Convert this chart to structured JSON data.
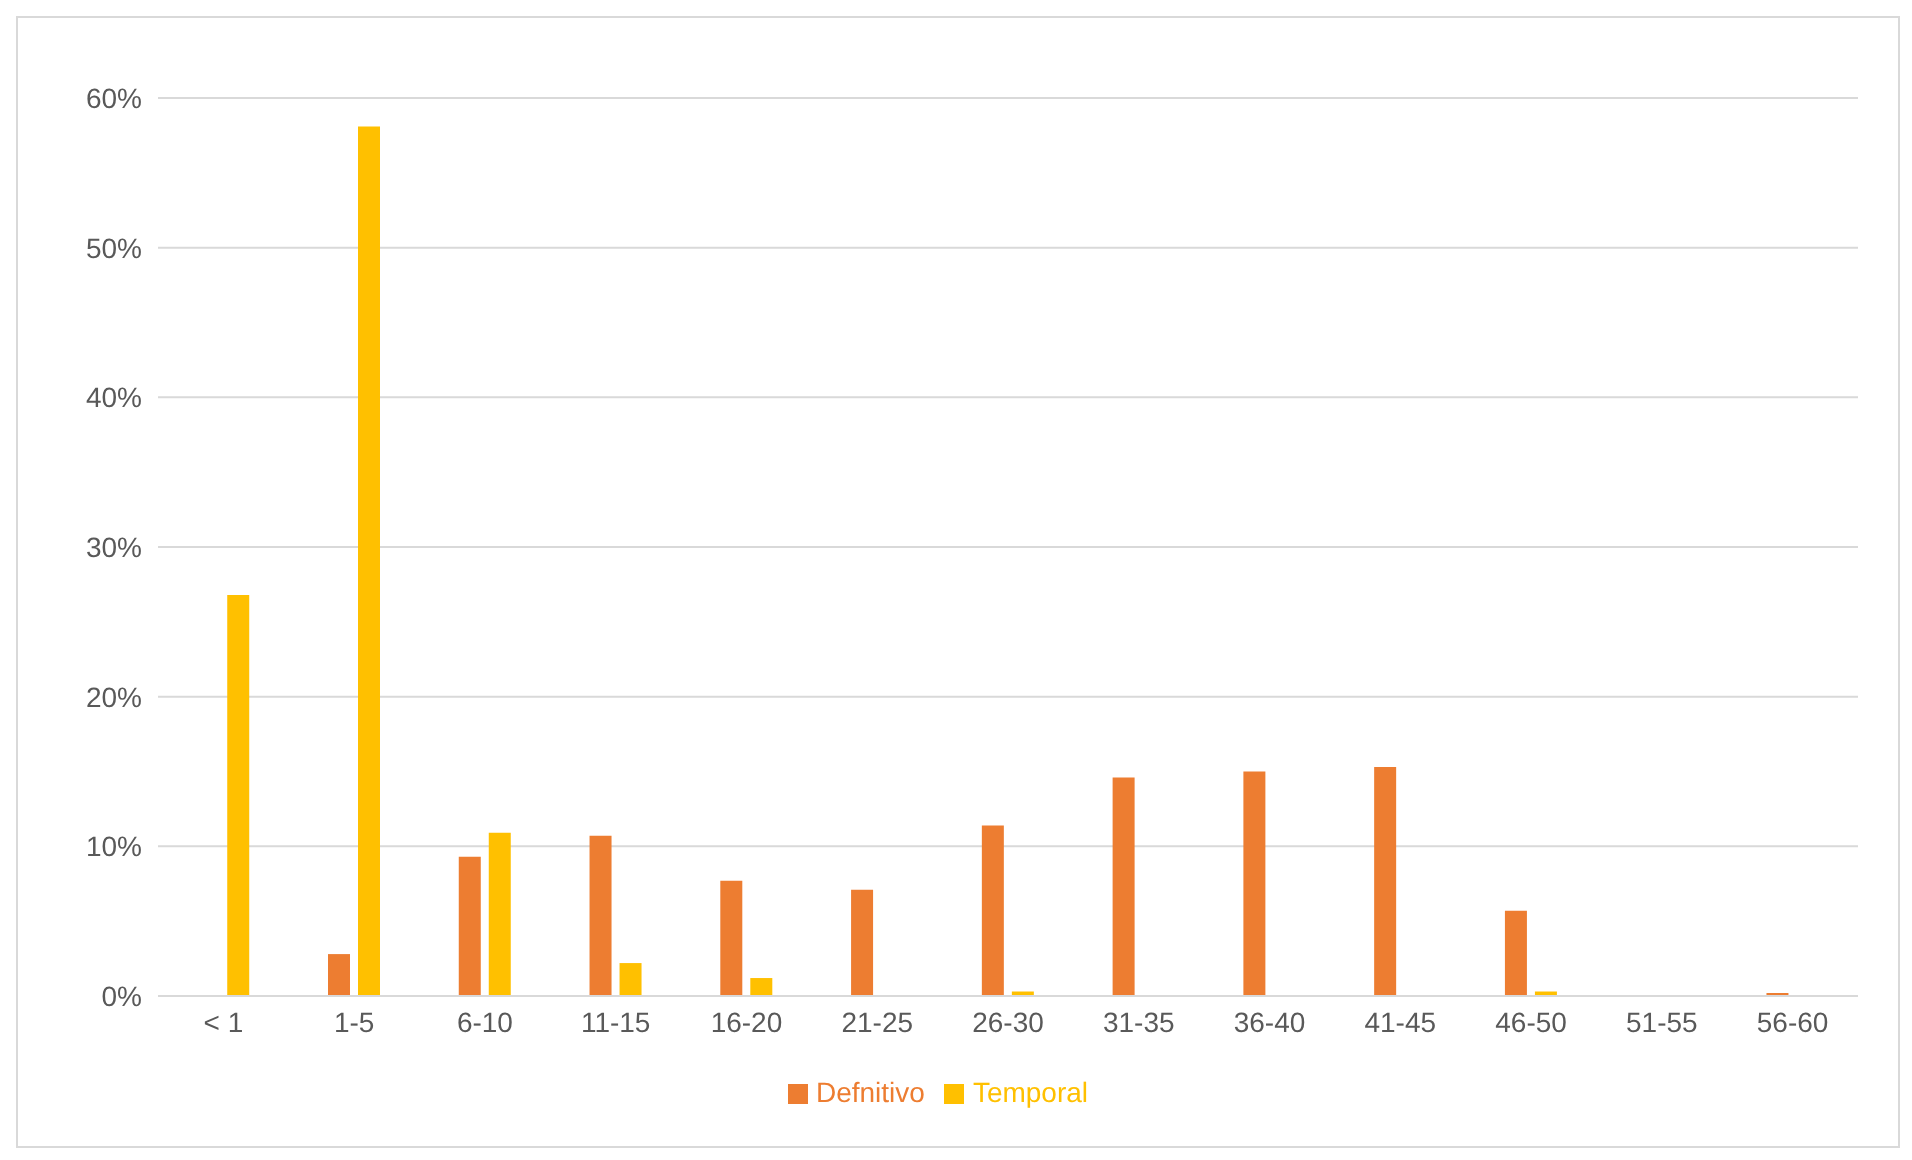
{
  "chart_data": {
    "type": "bar",
    "categories": [
      "< 1",
      "1-5",
      "6-10",
      "11-15",
      "16-20",
      "21-25",
      "26-30",
      "31-35",
      "36-40",
      "41-45",
      "46-50",
      "51-55",
      "56-60"
    ],
    "series": [
      {
        "name": "Defnitivo",
        "color": "#ed7d31",
        "values": [
          0,
          2.8,
          9.3,
          10.7,
          7.7,
          7.1,
          11.4,
          14.6,
          15.0,
          15.3,
          5.7,
          0,
          0.2
        ]
      },
      {
        "name": "Temporal",
        "color": "#ffc000",
        "values": [
          26.8,
          58.1,
          10.9,
          2.2,
          1.2,
          0,
          0.3,
          0,
          0,
          0,
          0.3,
          0,
          0
        ]
      }
    ],
    "ylim": [
      0,
      60
    ],
    "yticks": [
      {
        "value": 0,
        "label": "0%"
      },
      {
        "value": 10,
        "label": "10%"
      },
      {
        "value": 20,
        "label": "20%"
      },
      {
        "value": 30,
        "label": "30%"
      },
      {
        "value": 40,
        "label": "40%"
      },
      {
        "value": 50,
        "label": "50%"
      },
      {
        "value": 60,
        "label": "60%"
      }
    ],
    "grid": "y",
    "legend": "bottom"
  }
}
